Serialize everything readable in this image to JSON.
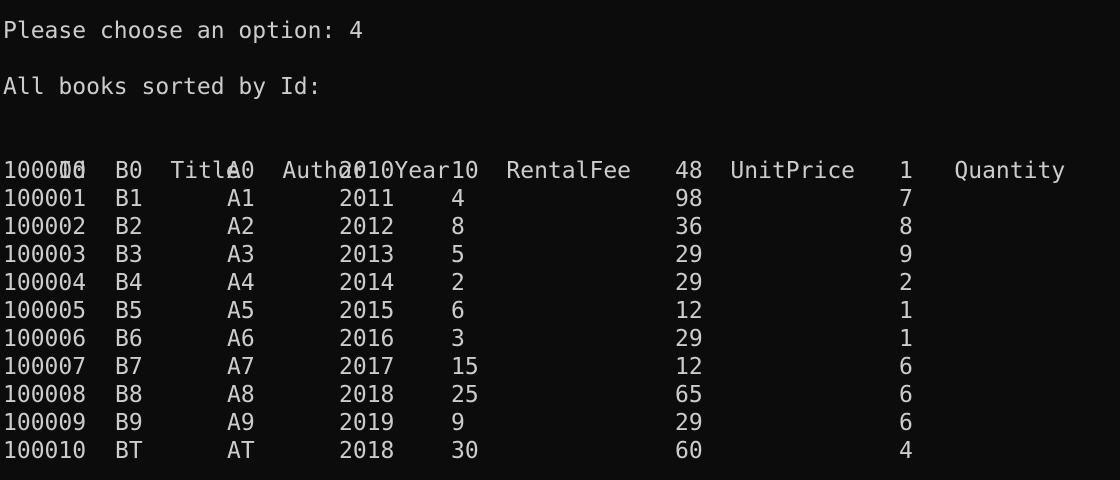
{
  "terminal": {
    "prompt": "Please choose an option: 4",
    "heading": "All books sorted by Id:",
    "columns": [
      "Id",
      "Title",
      "Author",
      "Year",
      "RentalFee",
      "UnitPrice",
      "Quantity"
    ],
    "rows": [
      [
        "100000",
        "B0",
        "A0",
        "2010",
        "10",
        "48",
        "1"
      ],
      [
        "100001",
        "B1",
        "A1",
        "2011",
        "4",
        "98",
        "7"
      ],
      [
        "100002",
        "B2",
        "A2",
        "2012",
        "8",
        "36",
        "8"
      ],
      [
        "100003",
        "B3",
        "A3",
        "2013",
        "5",
        "29",
        "9"
      ],
      [
        "100004",
        "B4",
        "A4",
        "2014",
        "2",
        "29",
        "2"
      ],
      [
        "100005",
        "B5",
        "A5",
        "2015",
        "6",
        "12",
        "1"
      ],
      [
        "100006",
        "B6",
        "A6",
        "2016",
        "3",
        "29",
        "1"
      ],
      [
        "100007",
        "B7",
        "A7",
        "2017",
        "15",
        "12",
        "6"
      ],
      [
        "100008",
        "B8",
        "A8",
        "2018",
        "25",
        "65",
        "6"
      ],
      [
        "100009",
        "B9",
        "A9",
        "2019",
        "9",
        "29",
        "6"
      ],
      [
        "100010",
        "BT",
        "AT",
        "2018",
        "30",
        "60",
        "4"
      ]
    ]
  }
}
